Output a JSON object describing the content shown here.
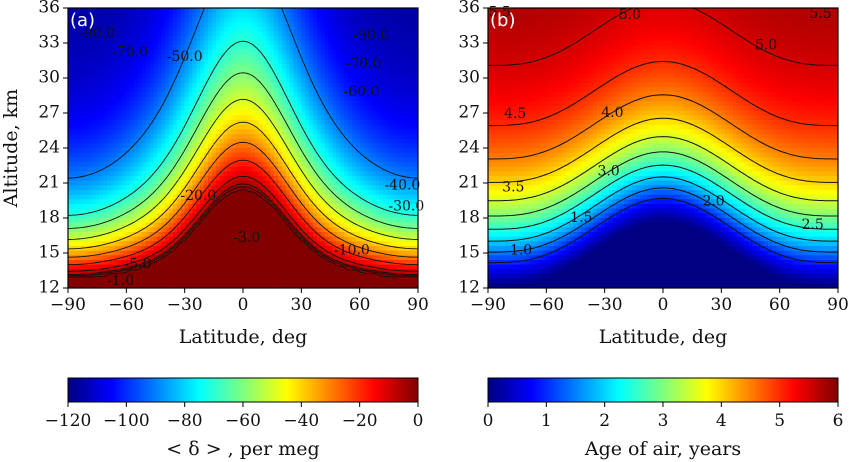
{
  "chart_data": [
    {
      "type": "heatmap",
      "panel": "(a)",
      "xlabel": "Latitude, deg",
      "ylabel": "Altitude, km",
      "xlim": [
        -90,
        90
      ],
      "ylim": [
        12,
        36
      ],
      "xticks": [
        "−90",
        "−60",
        "−30",
        "0",
        "30",
        "60",
        "90"
      ],
      "yticks": [
        "12",
        "15",
        "18",
        "21",
        "24",
        "27",
        "30",
        "33",
        "36"
      ],
      "colorbar": {
        "label": "< δ > , per meg",
        "range": [
          -120,
          0
        ],
        "ticks": [
          "−120",
          "−100",
          "−80",
          "−60",
          "−40",
          "−20",
          "0"
        ]
      },
      "contour_style": "dashed",
      "contour_levels": [
        -90,
        -70,
        -60,
        -50,
        -40,
        -30,
        -20,
        -10,
        -5,
        -3,
        -1
      ],
      "contour_labels": [
        {
          "text": "-90.0",
          "lat": -75,
          "alt": 33.8
        },
        {
          "text": "-70.0",
          "lat": -58,
          "alt": 32.2
        },
        {
          "text": "-50.0",
          "lat": -30,
          "alt": 31.8
        },
        {
          "text": "-90.0",
          "lat": 66,
          "alt": 33.6
        },
        {
          "text": "-70.0",
          "lat": 62,
          "alt": 31.2
        },
        {
          "text": "-60.0",
          "lat": 61,
          "alt": 28.8
        },
        {
          "text": "-20.0",
          "lat": -23,
          "alt": 19.9
        },
        {
          "text": "-40.0",
          "lat": 82,
          "alt": 20.8
        },
        {
          "text": "-30.0",
          "lat": 84,
          "alt": 19.0
        },
        {
          "text": "-3.0",
          "lat": 2,
          "alt": 16.3
        },
        {
          "text": "-10.0",
          "lat": 56,
          "alt": 15.2
        },
        {
          "text": "-5.0",
          "lat": -54,
          "alt": 14.0
        },
        {
          "text": "-1.0",
          "lat": -63,
          "alt": 12.6
        }
      ]
    },
    {
      "type": "heatmap",
      "panel": "(b)",
      "xlabel": "Latitude, deg",
      "xlim": [
        -90,
        90
      ],
      "ylim": [
        12,
        36
      ],
      "xticks": [
        "−90",
        "−60",
        "−30",
        "0",
        "30",
        "60",
        "90"
      ],
      "yticks": [
        "12",
        "15",
        "18",
        "21",
        "24",
        "27",
        "30",
        "33",
        "36"
      ],
      "colorbar": {
        "label": "Age of air, years",
        "range": [
          0,
          6
        ],
        "ticks": [
          "0",
          "1",
          "2",
          "3",
          "4",
          "5",
          "6"
        ]
      },
      "contour_style": "solid",
      "contour_levels": [
        1.0,
        1.5,
        2.0,
        2.5,
        3.0,
        3.5,
        4.0,
        4.5,
        5.0,
        5.5
      ],
      "contour_labels": [
        {
          "text": "5.5",
          "lat": -84,
          "alt": 35.6
        },
        {
          "text": "5.0",
          "lat": -17,
          "alt": 35.4
        },
        {
          "text": "5.5",
          "lat": 81,
          "alt": 35.5
        },
        {
          "text": "5.0",
          "lat": 53,
          "alt": 32.8
        },
        {
          "text": "4.5",
          "lat": -76,
          "alt": 26.9
        },
        {
          "text": "4.0",
          "lat": -26,
          "alt": 27.0
        },
        {
          "text": "3.0",
          "lat": -28,
          "alt": 22.0
        },
        {
          "text": "3.5",
          "lat": -77,
          "alt": 20.6
        },
        {
          "text": "2.0",
          "lat": 26,
          "alt": 19.4
        },
        {
          "text": "1.5",
          "lat": -42,
          "alt": 18.0
        },
        {
          "text": "2.5",
          "lat": 77,
          "alt": 17.4
        },
        {
          "text": "1.0",
          "lat": -73,
          "alt": 15.2
        }
      ]
    }
  ]
}
